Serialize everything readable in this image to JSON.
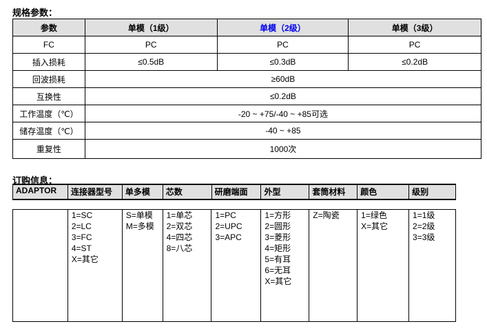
{
  "spec": {
    "title": "规格参数：",
    "headers": [
      "参数",
      "单模（1级）",
      "单模（2级）",
      "单模（3级）"
    ],
    "highlight_color": "#0000ee",
    "rows": [
      {
        "label": "FC",
        "values": [
          "PC",
          "PC",
          "PC"
        ]
      },
      {
        "label": "插入损耗",
        "values": [
          "≤0.5dB",
          "≤0.3dB",
          "≤0.2dB"
        ]
      },
      {
        "label": "回波损耗",
        "value": "≥60dB"
      },
      {
        "label": "互换性",
        "value": "≤0.2dB"
      },
      {
        "label": "工作温度（℃）",
        "value": "-20 ~ +75/-40 ~ +85可选"
      },
      {
        "label": "储存温度（℃）",
        "value": "-40 ~ +85"
      },
      {
        "label": "重复性",
        "value": "1000次"
      }
    ]
  },
  "order": {
    "title": "订购信息：",
    "headers": [
      "ADAPTOR",
      "连接器型号",
      "单多模",
      "芯数",
      "研磨端面",
      "外型",
      "套筒材料",
      "颜色",
      "级别"
    ],
    "options": [
      [],
      [
        "1=SC",
        "2=LC",
        "3=FC",
        "4=ST",
        "X=其它"
      ],
      [
        "S=单模",
        "M=多模"
      ],
      [
        "1=单芯",
        "2=双芯",
        "4=四芯",
        "8=八芯"
      ],
      [
        "1=PC",
        "2=UPC",
        "3=APC"
      ],
      [
        "1=方形",
        "2=圆形",
        "3=菱形",
        "4=矩形",
        "5=有耳",
        "6=无耳",
        "X=其它"
      ],
      [
        "Z=陶瓷"
      ],
      [
        "1=绿色",
        "X=其它"
      ],
      [
        "1=1级",
        "2=2级",
        "3=3级"
      ]
    ]
  }
}
